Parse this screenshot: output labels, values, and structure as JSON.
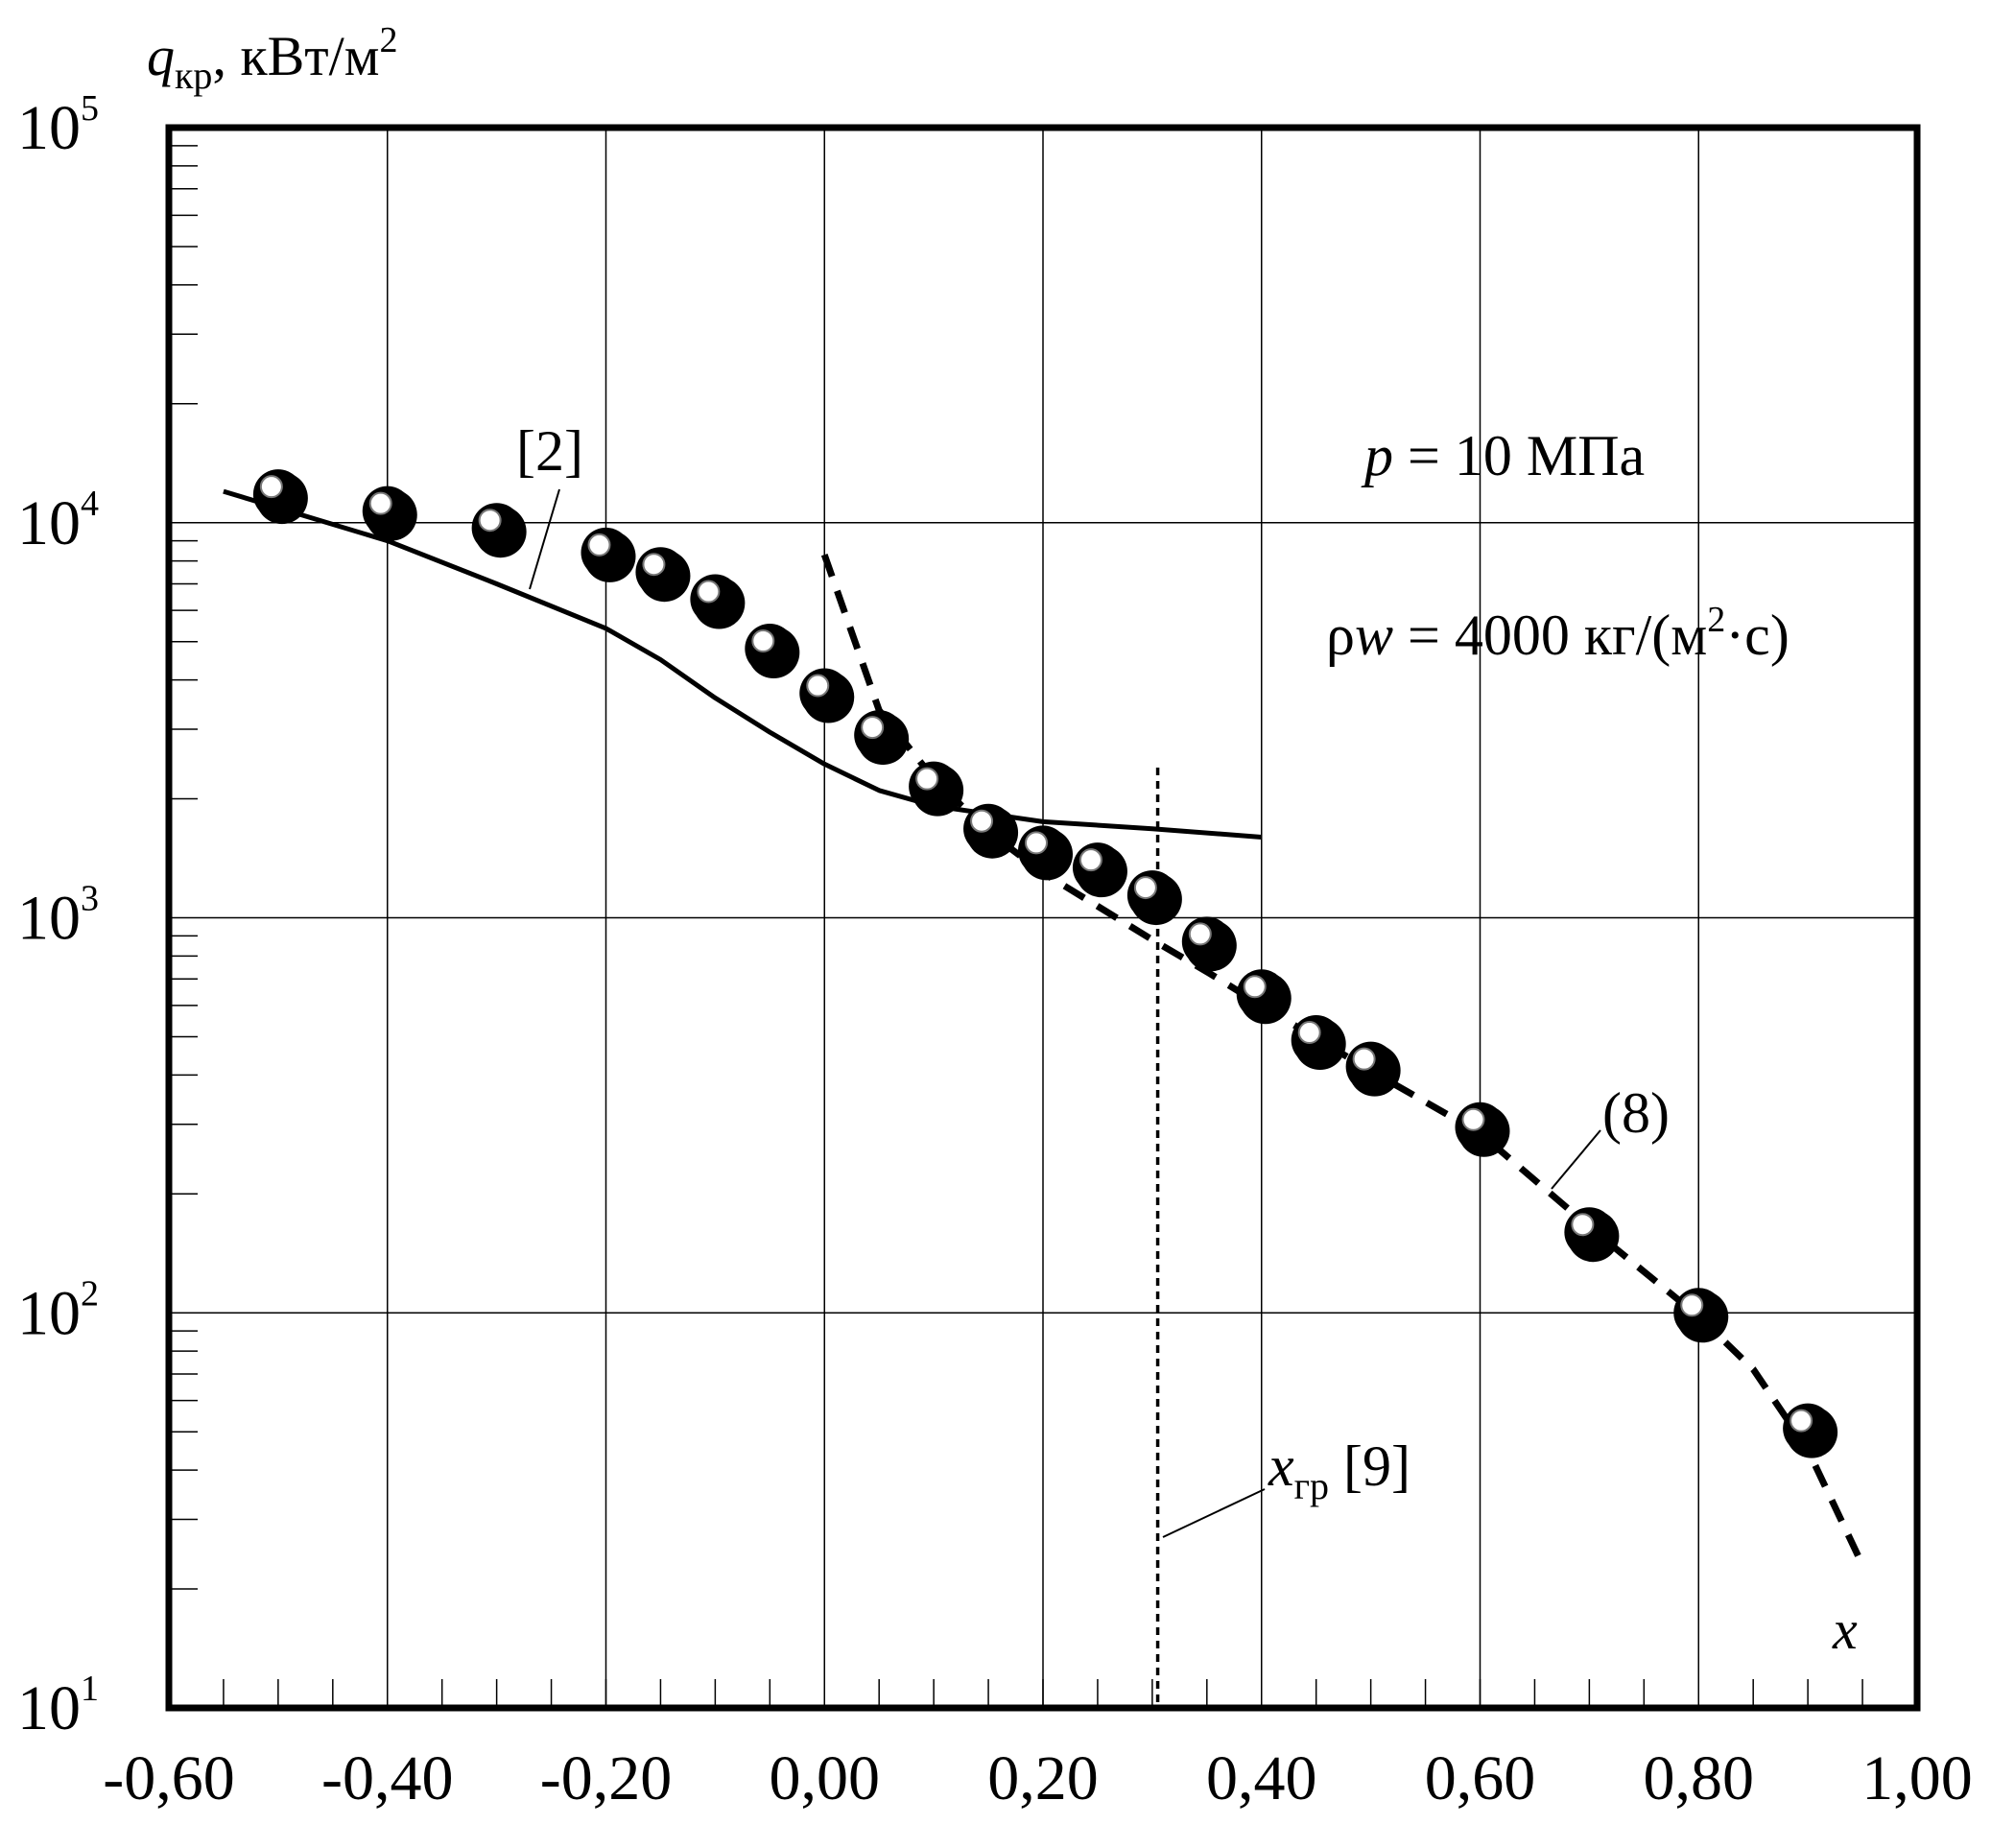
{
  "chart_data": {
    "type": "scatter",
    "ylabel": {
      "symbol": "q",
      "subscript": "кр",
      "units": ", кВт/м",
      "units_sup": "2"
    },
    "xlabel": "x",
    "x_ticks": [
      "-0,60",
      "-0,40",
      "-0,20",
      "0,00",
      "0,20",
      "0,40",
      "0,60",
      "0,80",
      "1,00"
    ],
    "x_tick_values": [
      -0.6,
      -0.4,
      -0.2,
      0.0,
      0.2,
      0.4,
      0.6,
      0.8,
      1.0
    ],
    "y_ticks": [
      {
        "base": "10",
        "exp": "1",
        "value": 10
      },
      {
        "base": "10",
        "exp": "2",
        "value": 100
      },
      {
        "base": "10",
        "exp": "3",
        "value": 1000
      },
      {
        "base": "10",
        "exp": "4",
        "value": 10000
      },
      {
        "base": "10",
        "exp": "5",
        "value": 100000
      }
    ],
    "xlim": [
      -0.6,
      1.0
    ],
    "ylim": [
      10,
      100000
    ],
    "yscale": "log",
    "grid": true,
    "annotations": {
      "pressure": {
        "symbol": "p",
        "text": " = 10 МПа"
      },
      "mass_flux": {
        "symbol_a": "ρ",
        "symbol_b": "w",
        "text": " = 4000 кг/(м",
        "sup": "2",
        "tail": "·с)"
      },
      "ref2": "[2]",
      "ref8": "(8)",
      "xgr": {
        "symbol": "x",
        "subscript": "гр",
        "text": " [9]"
      }
    },
    "points": {
      "x": [
        -0.5,
        -0.4,
        -0.3,
        -0.2,
        -0.15,
        -0.1,
        -0.05,
        0.0,
        0.05,
        0.1,
        0.15,
        0.2,
        0.25,
        0.3,
        0.35,
        0.4,
        0.45,
        0.5,
        0.6,
        0.7,
        0.8,
        0.9
      ],
      "y": [
        11800,
        10700,
        9700,
        8400,
        7500,
        6400,
        4800,
        3700,
        2900,
        2150,
        1680,
        1480,
        1340,
        1140,
        870,
        640,
        490,
        420,
        295,
        160,
        100,
        51
      ]
    },
    "curve_ref2": {
      "x": [
        -0.55,
        -0.4,
        -0.3,
        -0.2,
        -0.15,
        -0.1,
        -0.05,
        0.0,
        0.05,
        0.1,
        0.2,
        0.3,
        0.4
      ],
      "y": [
        12000,
        9000,
        7000,
        5400,
        4500,
        3600,
        2950,
        2450,
        2100,
        1920,
        1750,
        1680,
        1600
      ]
    },
    "curve_eq8": {
      "x": [
        0.0,
        0.05,
        0.1,
        0.15,
        0.2,
        0.25,
        0.3,
        0.35,
        0.4,
        0.45,
        0.5,
        0.6,
        0.7,
        0.8,
        0.85,
        0.9,
        0.95
      ],
      "y": [
        8300,
        3350,
        2250,
        1650,
        1300,
        1070,
        880,
        730,
        600,
        495,
        410,
        285,
        165,
        98,
        72,
        45,
        23
      ]
    },
    "xgr_line": {
      "x": 0.305,
      "y_top": 2400
    }
  }
}
